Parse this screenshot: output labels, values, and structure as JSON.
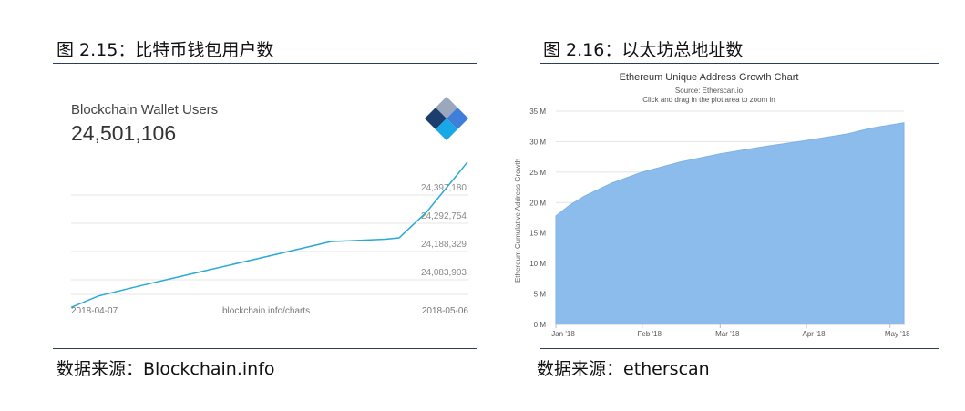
{
  "left": {
    "figure_title": "图 2.15：比特币钱包用户数",
    "source": "数据来源：Blockchain.info"
  },
  "right": {
    "figure_title": "图 2.16：以太坊总地址数",
    "source": "数据来源：etherscan"
  },
  "chart_data": [
    {
      "type": "line",
      "title": "Blockchain Wallet Users",
      "headline_value": "24,501,106",
      "x": [
        "2018-04-07",
        "2018-04-09",
        "2018-04-12",
        "2018-04-16",
        "2018-04-21",
        "2018-04-26",
        "2018-04-30",
        "2018-05-01",
        "2018-05-03",
        "2018-05-06"
      ],
      "values": [
        23955000,
        23997000,
        24034000,
        24081000,
        24139000,
        24198000,
        24207000,
        24212000,
        24307000,
        24492000
      ],
      "ytick_labels": [
        "24,397,180",
        "24,292,754",
        "24,188,329",
        "24,083,903"
      ],
      "yticks": [
        24397180,
        24292754,
        24188329,
        24083903
      ],
      "xtick_labels": [
        "2018-04-07",
        "2018-05-06"
      ],
      "footer_label": "blockchain.info/charts",
      "color": "#29a9d6",
      "grid": true
    },
    {
      "type": "area",
      "title": "Ethereum Unique Address Growth Chart",
      "subtitle": "Source: Etherscan.io",
      "subtitle2": "Click and drag in the plot area to zoom in",
      "ylabel": "Ethereum Cumulative Address Growth",
      "ylim": [
        0,
        35
      ],
      "yticks": [
        0,
        5,
        10,
        15,
        20,
        25,
        30,
        35
      ],
      "ytick_labels": [
        "0 M",
        "5 M",
        "10 M",
        "15 M",
        "20 M",
        "25 M",
        "30 M",
        "35 M"
      ],
      "xtick_labels": [
        "Jan '18",
        "Feb '18",
        "Mar '18",
        "Apr '18",
        "May '18"
      ],
      "x_days": [
        0,
        31,
        59,
        90,
        120
      ],
      "points": [
        [
          0,
          17.8
        ],
        [
          5,
          19.6
        ],
        [
          10,
          21.0
        ],
        [
          20,
          23.2
        ],
        [
          31,
          25.0
        ],
        [
          45,
          26.7
        ],
        [
          59,
          28.0
        ],
        [
          75,
          29.2
        ],
        [
          90,
          30.2
        ],
        [
          105,
          31.3
        ],
        [
          113,
          32.2
        ],
        [
          125,
          33.1
        ]
      ],
      "color": "#8bbcec",
      "grid": true
    }
  ]
}
